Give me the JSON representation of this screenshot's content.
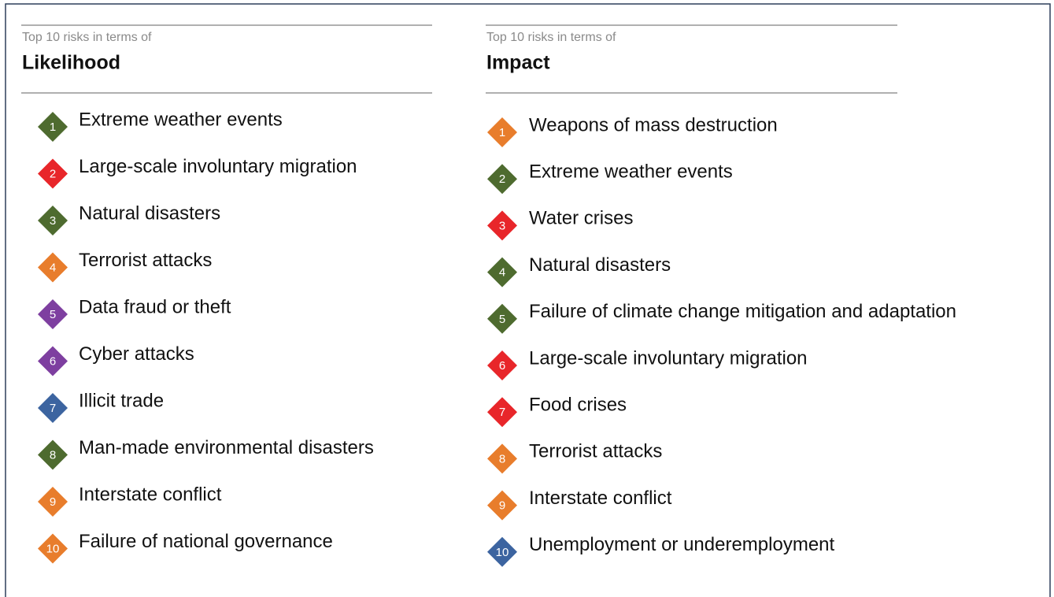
{
  "columns": [
    {
      "kicker": "Top 10 risks in terms of",
      "title": "Likelihood",
      "items": [
        {
          "rank": 1,
          "label": "Extreme weather events",
          "color": "#4e6b2f"
        },
        {
          "rank": 2,
          "label": "Large-scale involuntary migration",
          "color": "#e8262a"
        },
        {
          "rank": 3,
          "label": "Natural disasters",
          "color": "#4e6b2f"
        },
        {
          "rank": 4,
          "label": "Terrorist attacks",
          "color": "#e87d2c"
        },
        {
          "rank": 5,
          "label": "Data fraud or theft",
          "color": "#7e3fa0"
        },
        {
          "rank": 6,
          "label": "Cyber attacks",
          "color": "#7e3fa0"
        },
        {
          "rank": 7,
          "label": "Illicit trade",
          "color": "#3c64a0"
        },
        {
          "rank": 8,
          "label": "Man-made environmental disasters",
          "color": "#4e6b2f"
        },
        {
          "rank": 9,
          "label": "Interstate conflict",
          "color": "#e87d2c"
        },
        {
          "rank": 10,
          "label": "Failure of national governance",
          "color": "#e87d2c"
        }
      ]
    },
    {
      "kicker": "Top 10 risks in terms of",
      "title": "Impact",
      "items": [
        {
          "rank": 1,
          "label": "Weapons of mass destruction",
          "color": "#e87d2c"
        },
        {
          "rank": 2,
          "label": "Extreme weather events",
          "color": "#4e6b2f"
        },
        {
          "rank": 3,
          "label": "Water crises",
          "color": "#e8262a"
        },
        {
          "rank": 4,
          "label": "Natural disasters",
          "color": "#4e6b2f"
        },
        {
          "rank": 5,
          "label": "Failure of climate change mitigation and adaptation",
          "color": "#4e6b2f"
        },
        {
          "rank": 6,
          "label": "Large-scale involuntary migration",
          "color": "#e8262a"
        },
        {
          "rank": 7,
          "label": "Food crises",
          "color": "#e8262a"
        },
        {
          "rank": 8,
          "label": "Terrorist attacks",
          "color": "#e87d2c"
        },
        {
          "rank": 9,
          "label": "Interstate conflict",
          "color": "#e87d2c"
        },
        {
          "rank": 10,
          "label": "Unemployment or underemployment",
          "color": "#3c64a0"
        }
      ]
    }
  ]
}
